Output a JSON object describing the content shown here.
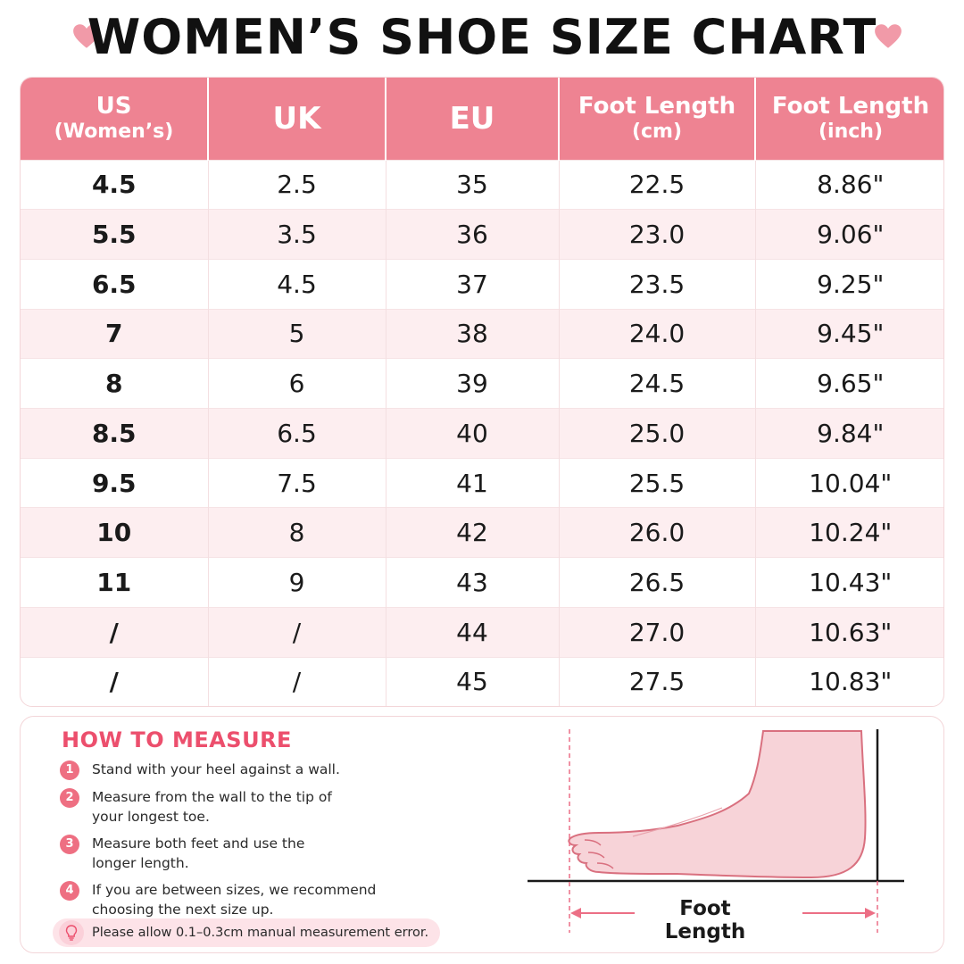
{
  "title": "WOMEN’S SHOE SIZE CHART",
  "colors": {
    "header": "#ee8392",
    "accent": "#ec4f6d",
    "stripe": "#fdeef0",
    "heart": "#f19aa8"
  },
  "table": {
    "headers": [
      {
        "main": "US",
        "sub": "(Women’s)"
      },
      {
        "main": "UK",
        "sub": ""
      },
      {
        "main": "EU",
        "sub": ""
      },
      {
        "main": "Foot Length",
        "sub": "(cm)"
      },
      {
        "main": "Foot Length",
        "sub": "(inch)"
      }
    ],
    "rows": [
      [
        "4.5",
        "2.5",
        "35",
        "22.5",
        "8.86\""
      ],
      [
        "5.5",
        "3.5",
        "36",
        "23.0",
        "9.06\""
      ],
      [
        "6.5",
        "4.5",
        "37",
        "23.5",
        "9.25\""
      ],
      [
        "7",
        "5",
        "38",
        "24.0",
        "9.45\""
      ],
      [
        "8",
        "6",
        "39",
        "24.5",
        "9.65\""
      ],
      [
        "8.5",
        "6.5",
        "40",
        "25.0",
        "9.84\""
      ],
      [
        "9.5",
        "7.5",
        "41",
        "25.5",
        "10.04\""
      ],
      [
        "10",
        "8",
        "42",
        "26.0",
        "10.24\""
      ],
      [
        "11",
        "9",
        "43",
        "26.5",
        "10.43\""
      ],
      [
        "/",
        "/",
        "44",
        "27.0",
        "10.63\""
      ],
      [
        "/",
        "/",
        "45",
        "27.5",
        "10.83\""
      ]
    ]
  },
  "measure": {
    "title": "HOW TO MEASURE",
    "steps": [
      {
        "num": "1",
        "text": "Stand with your heel against a wall."
      },
      {
        "num": "2",
        "text": "Measure from the wall to the tip of your longest toe."
      },
      {
        "num": "3",
        "text": "Measure both feet and use the longer length."
      },
      {
        "num": "4",
        "text": "If you are between sizes, we recommend choosing the next size up."
      }
    ],
    "note": "Please allow 0.1–0.3cm manual measurement error.",
    "diagram_label": "Foot Length",
    "icons": [
      "heart-icon",
      "lightbulb-icon",
      "foot-diagram-icon"
    ]
  }
}
